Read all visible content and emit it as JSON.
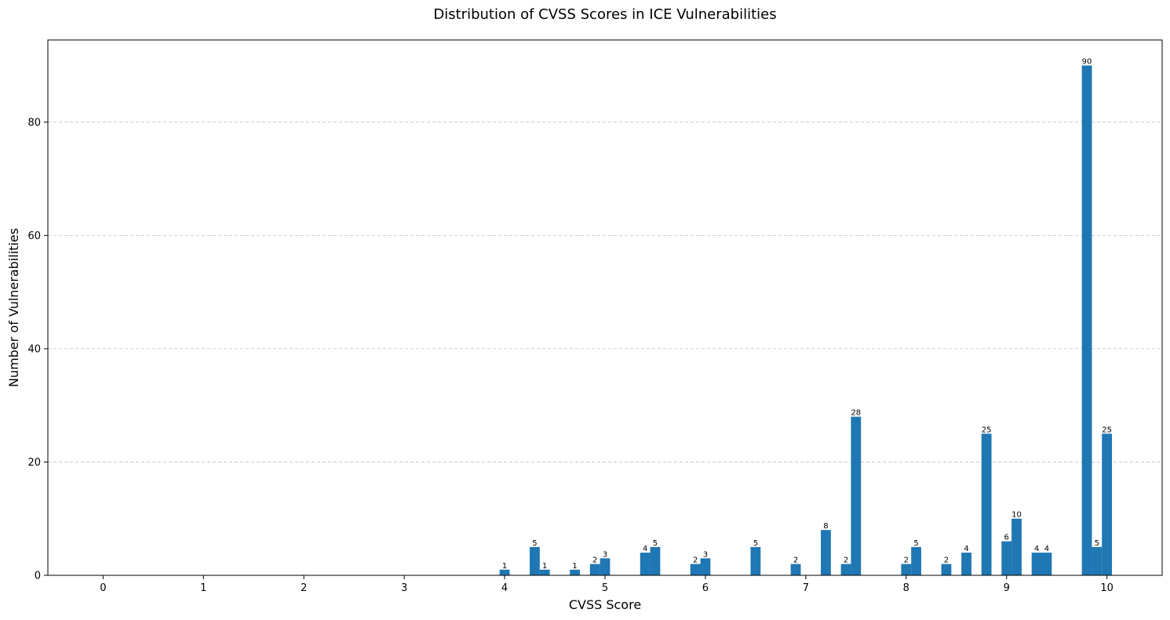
{
  "chart_data": {
    "type": "bar",
    "title": "Distribution of CVSS Scores in ICE Vulnerabilities",
    "xlabel": "CVSS Score",
    "ylabel": "Number of Vulnerabilities",
    "xlim": [
      -0.55,
      10.55
    ],
    "ylim": [
      0,
      94.5
    ],
    "xticks": [
      0,
      1,
      2,
      3,
      4,
      5,
      6,
      7,
      8,
      9,
      10
    ],
    "yticks": [
      0,
      20,
      40,
      60,
      80
    ],
    "grid": "y-dashed",
    "bar_color": "#1f77b4",
    "x": [
      4.0,
      4.3,
      4.4,
      4.7,
      4.9,
      5.0,
      5.4,
      5.5,
      5.9,
      6.0,
      6.5,
      6.9,
      7.2,
      7.4,
      7.5,
      8.0,
      8.1,
      8.4,
      8.6,
      8.8,
      9.0,
      9.1,
      9.3,
      9.4,
      9.8,
      9.9,
      10.0
    ],
    "values": [
      1,
      5,
      1,
      1,
      2,
      3,
      4,
      5,
      2,
      3,
      5,
      2,
      8,
      2,
      28,
      2,
      5,
      2,
      4,
      25,
      6,
      10,
      4,
      4,
      90,
      5,
      25
    ]
  }
}
